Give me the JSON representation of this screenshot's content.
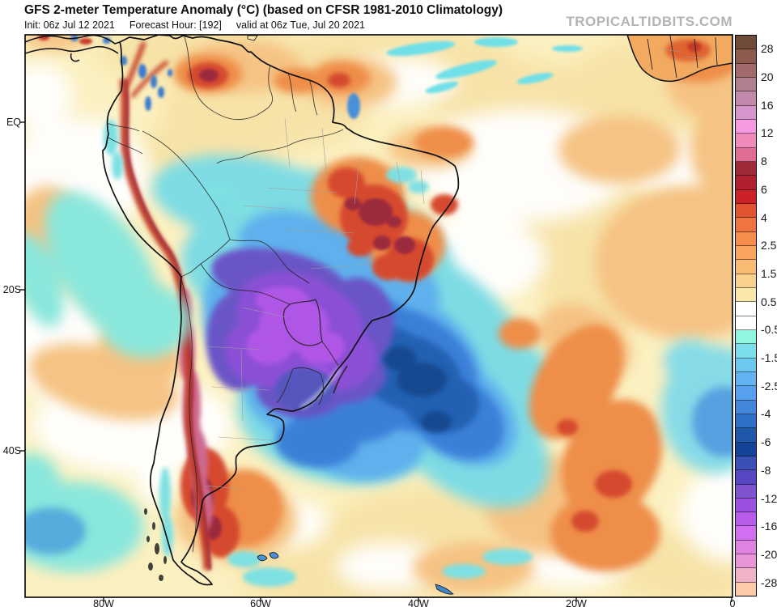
{
  "header": {
    "title": "GFS 2-meter Temperature Anomaly (°C) (based on CFSR 1981-2010 Climatology)",
    "init": "Init: 06z Jul 12 2021",
    "fhr": "Forecast Hour: [192]",
    "valid": "valid at 06z Tue, Jul 20 2021",
    "watermark": "TROPICALTIDBITS.COM"
  },
  "axes": {
    "lat_labels": [
      "EQ",
      "20S",
      "40S"
    ],
    "lon_labels": [
      "80W",
      "60W",
      "40W",
      "20W",
      "0"
    ]
  },
  "colorbar": {
    "labels": [
      "28",
      "20",
      "16",
      "12",
      "8",
      "6",
      "4",
      "2.5",
      "1.5",
      "0.5",
      "-0.5",
      "-1.5",
      "-2.5",
      "-4",
      "-6",
      "-8",
      "-12",
      "-16",
      "-20",
      "-28"
    ],
    "cells": [
      "#6f4b39",
      "#8d5a4e",
      "#a26a6a",
      "#b17d90",
      "#c289ac",
      "#d696cb",
      "#f79ae2",
      "#ef8abb",
      "#e16d94",
      "#9e2a3a",
      "#b21f2f",
      "#ce2127",
      "#e2542f",
      "#ef7440",
      "#f68d4d",
      "#f9a55f",
      "#fabc75",
      "#f8d18d",
      "#fae8ab",
      "#ffffff",
      "#ffffff",
      "#90f5e1",
      "#7bdeea",
      "#6cc8ef",
      "#63b2f2",
      "#57a0f0",
      "#4287dc",
      "#2e6fc9",
      "#1f58a8",
      "#15439a",
      "#3a50b6",
      "#5747c2",
      "#7f52cf",
      "#9b51e0",
      "#b75cea",
      "#d26ef0",
      "#e083e0",
      "#e995d7",
      "#f0b3c6",
      "#fbcaa6"
    ],
    "accent_cold_core": "#b057e6",
    "accent_warm_core": "#9c2b3d"
  }
}
